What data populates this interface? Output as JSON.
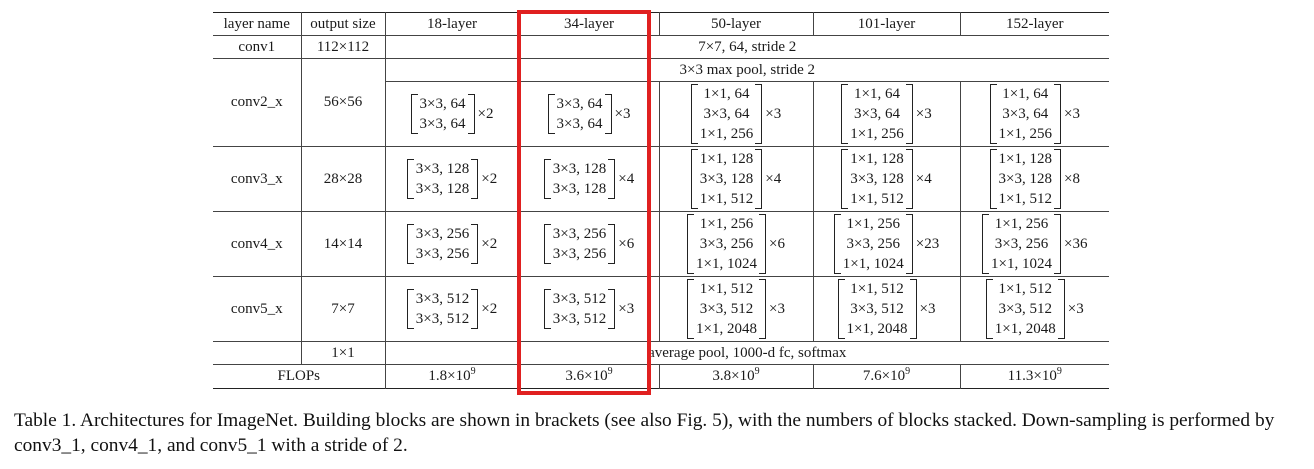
{
  "table": {
    "headers": [
      "layer name",
      "output size",
      "18-layer",
      "34-layer",
      "50-layer",
      "101-layer",
      "152-layer"
    ],
    "conv1": {
      "name": "conv1",
      "size": "112×112",
      "spec": "7×7, 64, stride 2"
    },
    "maxpool": "3×3 max pool, stride 2",
    "stages": [
      {
        "name": "conv2_x",
        "size": "56×56",
        "blocks": [
          {
            "lines": [
              "3×3, 64",
              "3×3, 64"
            ],
            "mult": "×2"
          },
          {
            "lines": [
              "3×3, 64",
              "3×3, 64"
            ],
            "mult": "×3"
          },
          {
            "lines": [
              "1×1, 64",
              "3×3, 64",
              "1×1, 256"
            ],
            "mult": "×3"
          },
          {
            "lines": [
              "1×1, 64",
              "3×3, 64",
              "1×1, 256"
            ],
            "mult": "×3"
          },
          {
            "lines": [
              "1×1, 64",
              "3×3, 64",
              "1×1, 256"
            ],
            "mult": "×3"
          }
        ]
      },
      {
        "name": "conv3_x",
        "size": "28×28",
        "blocks": [
          {
            "lines": [
              "3×3, 128",
              "3×3, 128"
            ],
            "mult": "×2"
          },
          {
            "lines": [
              "3×3, 128",
              "3×3, 128"
            ],
            "mult": "×4"
          },
          {
            "lines": [
              "1×1, 128",
              "3×3, 128",
              "1×1, 512"
            ],
            "mult": "×4"
          },
          {
            "lines": [
              "1×1, 128",
              "3×3, 128",
              "1×1, 512"
            ],
            "mult": "×4"
          },
          {
            "lines": [
              "1×1, 128",
              "3×3, 128",
              "1×1, 512"
            ],
            "mult": "×8"
          }
        ]
      },
      {
        "name": "conv4_x",
        "size": "14×14",
        "blocks": [
          {
            "lines": [
              "3×3, 256",
              "3×3, 256"
            ],
            "mult": "×2"
          },
          {
            "lines": [
              "3×3, 256",
              "3×3, 256"
            ],
            "mult": "×6"
          },
          {
            "lines": [
              "1×1, 256",
              "3×3, 256",
              "1×1, 1024"
            ],
            "mult": "×6"
          },
          {
            "lines": [
              "1×1, 256",
              "3×3, 256",
              "1×1, 1024"
            ],
            "mult": "×23"
          },
          {
            "lines": [
              "1×1, 256",
              "3×3, 256",
              "1×1, 1024"
            ],
            "mult": "×36"
          }
        ]
      },
      {
        "name": "conv5_x",
        "size": "7×7",
        "blocks": [
          {
            "lines": [
              "3×3, 512",
              "3×3, 512"
            ],
            "mult": "×2"
          },
          {
            "lines": [
              "3×3, 512",
              "3×3, 512"
            ],
            "mult": "×3"
          },
          {
            "lines": [
              "1×1, 512",
              "3×3, 512",
              "1×1, 2048"
            ],
            "mult": "×3"
          },
          {
            "lines": [
              "1×1, 512",
              "3×3, 512",
              "1×1, 2048"
            ],
            "mult": "×3"
          },
          {
            "lines": [
              "1×1, 512",
              "3×3, 512",
              "1×1, 2048"
            ],
            "mult": "×3"
          }
        ]
      }
    ],
    "avgpool": {
      "size": "1×1",
      "spec": "average pool, 1000-d fc, softmax"
    },
    "flops": {
      "label": "FLOPs",
      "values": [
        {
          "base": "1.8×10",
          "exp": "9"
        },
        {
          "base": "3.6×10",
          "exp": "9"
        },
        {
          "base": "3.8×10",
          "exp": "9"
        },
        {
          "base": "7.6×10",
          "exp": "9"
        },
        {
          "base": "11.3×10",
          "exp": "9"
        }
      ]
    },
    "highlighted_column": "34-layer",
    "highlight_color": "#e02020"
  },
  "caption": "Table 1. Architectures for ImageNet. Building blocks are shown in brackets (see also Fig. 5), with the numbers of blocks stacked. Down-sampling is performed by conv3_1, conv4_1, and conv5_1 with a stride of 2."
}
